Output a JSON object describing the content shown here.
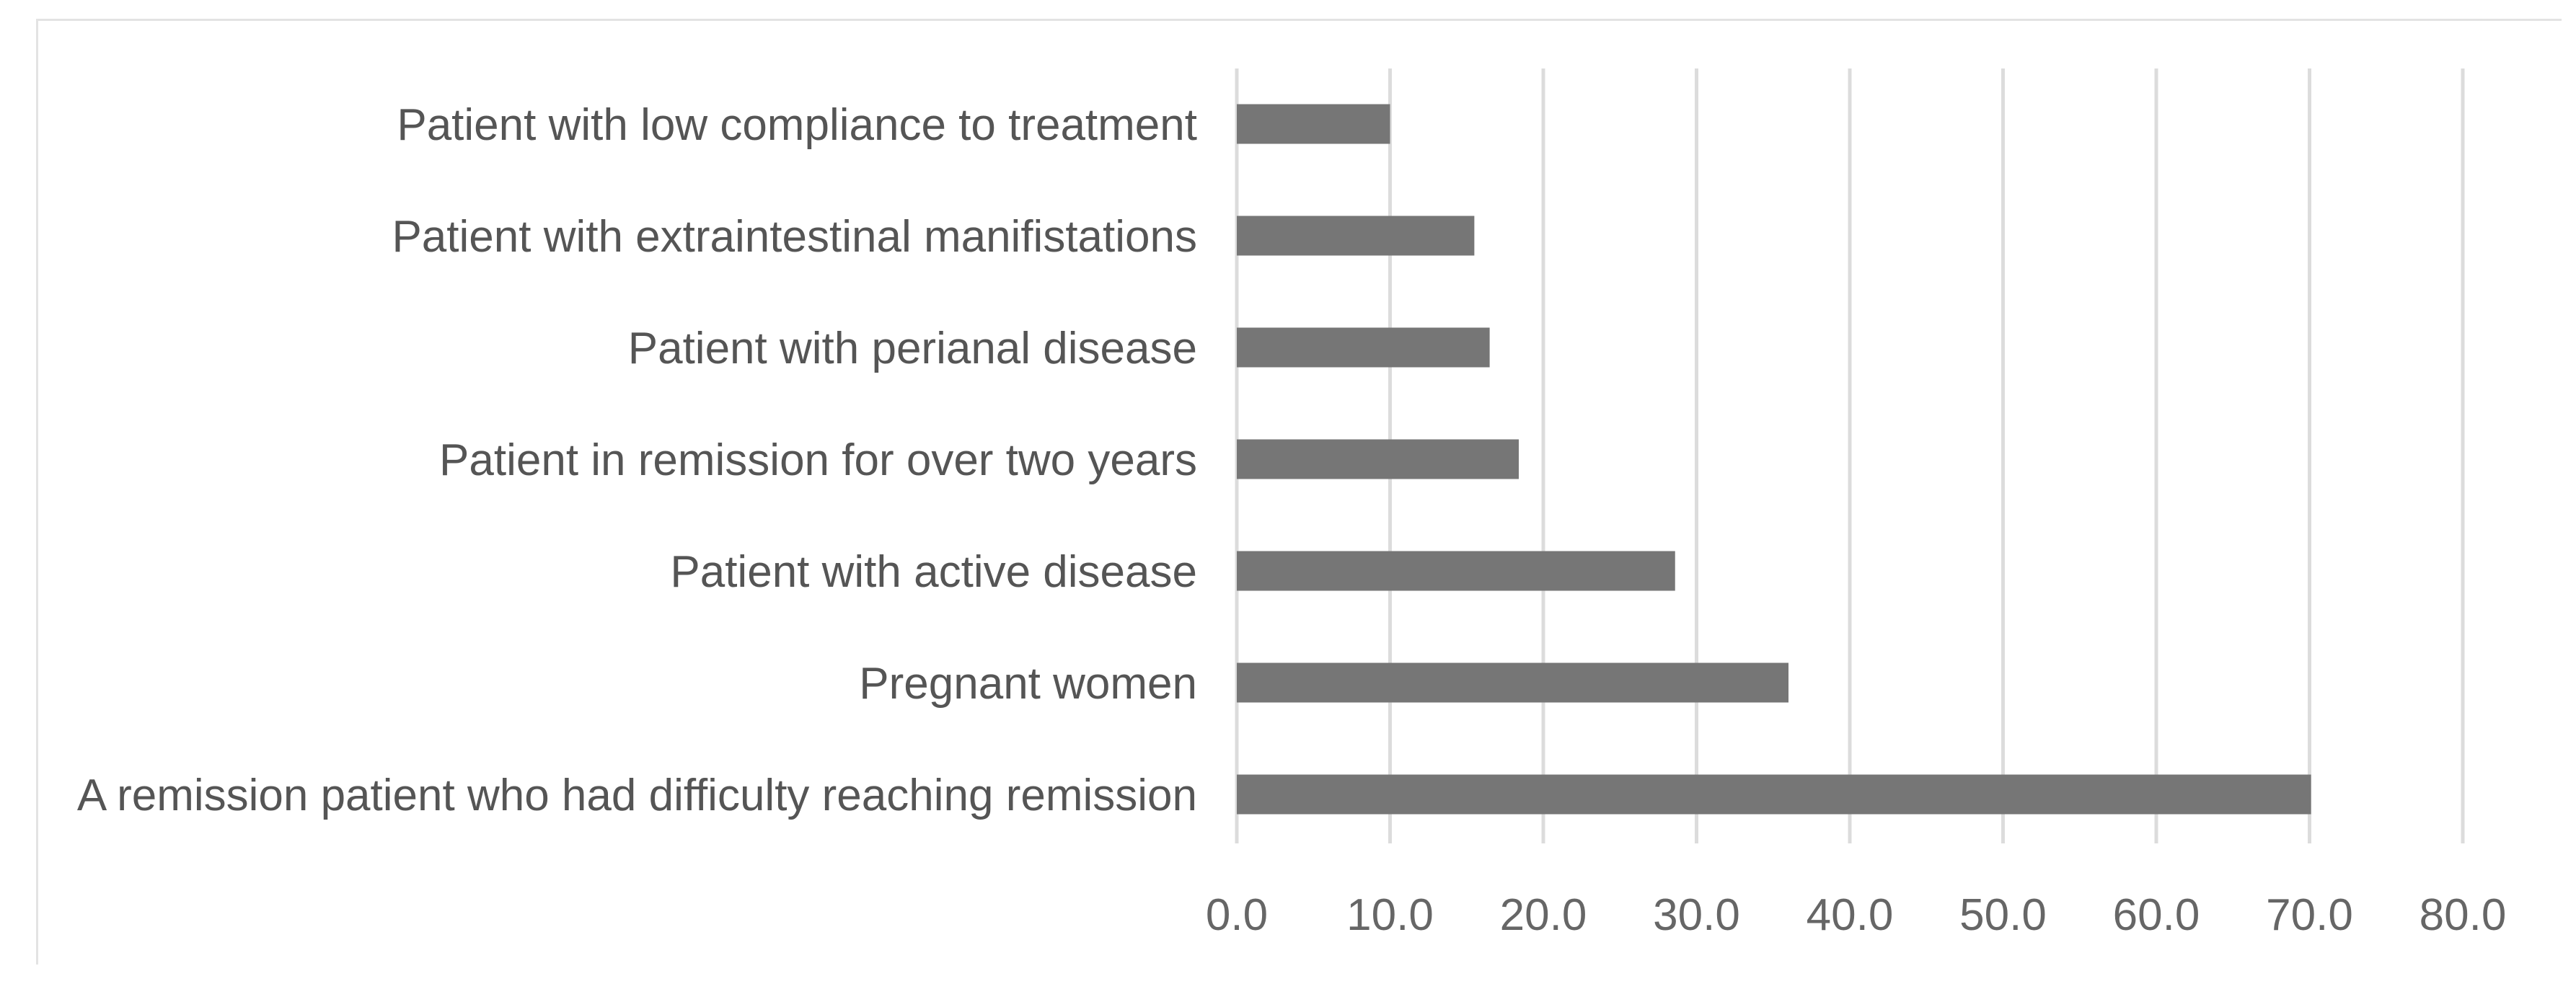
{
  "chart_data": {
    "type": "bar",
    "orientation": "horizontal",
    "title": "",
    "xlabel": "",
    "ylabel": "",
    "categories": [
      "Patient with low compliance to treatment",
      "Patient with extraintestinal manifistations",
      "Patient with perianal disease",
      "Patient in remission for over two years",
      "Patient with active disease",
      "Pregnant women",
      "A remission patient who had difficulty reaching remission"
    ],
    "values": [
      10.0,
      15.5,
      16.5,
      18.4,
      28.6,
      36.0,
      70.1
    ],
    "xlim": [
      0,
      80
    ],
    "xticks": [
      "0.0",
      "10.0",
      "20.0",
      "30.0",
      "40.0",
      "50.0",
      "60.0",
      "70.0",
      "80.0"
    ],
    "grid": true,
    "legend": "none",
    "bar_color": "#767676"
  }
}
